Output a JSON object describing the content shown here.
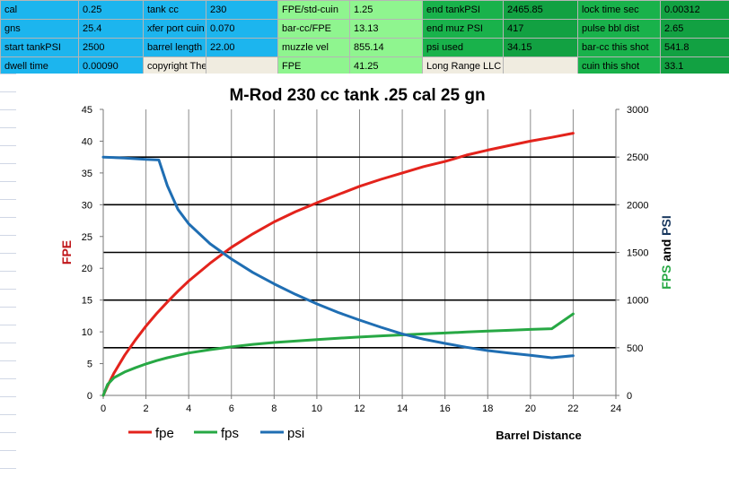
{
  "params": {
    "rows": [
      [
        {
          "label": "cal",
          "value": "0.25"
        },
        {
          "label": "tank cc",
          "value": "230"
        },
        {
          "label": "FPE/std-cuin",
          "value": "1.25"
        },
        {
          "label": "end tankPSI",
          "value": "2465.85"
        },
        {
          "label": "lock time sec",
          "value": "0.00312"
        }
      ],
      [
        {
          "label": "gns",
          "value": "25.4"
        },
        {
          "label": "xfer port cuin",
          "value": "0.070"
        },
        {
          "label": "bar-cc/FPE",
          "value": "13.13"
        },
        {
          "label": "end muz PSI",
          "value": "417"
        },
        {
          "label": "pulse bbl dist",
          "value": "2.65"
        }
      ],
      [
        {
          "label": "start tankPSI",
          "value": "2500"
        },
        {
          "label": "barrel length",
          "value": "22.00"
        },
        {
          "label": "muzzle vel",
          "value": "855.14"
        },
        {
          "label": "psi used",
          "value": "34.15"
        },
        {
          "label": "bar-cc this shot",
          "value": "541.8"
        }
      ],
      [
        {
          "label": "dwell time",
          "value": "0.00090"
        },
        {
          "label": "copyright The Airgun Lab LLC",
          "value": ""
        },
        {
          "label": "FPE",
          "value": "41.25"
        },
        {
          "label": "Long Range LLC Proprietary",
          "value": ""
        },
        {
          "label": "cuin this shot",
          "value": "33.1"
        }
      ]
    ]
  },
  "chart_data": {
    "type": "line",
    "title": "M-Rod 230 cc tank .25 cal 25 gn",
    "xlabel": "Barrel Distance",
    "ylabel_left": "FPE",
    "ylabel_right_parts": [
      "FPS",
      " and ",
      "PSI"
    ],
    "xlim": [
      0,
      24
    ],
    "xticks": [
      "0",
      "2",
      "4",
      "6",
      "8",
      "10",
      "12",
      "14",
      "16",
      "18",
      "20",
      "22",
      "24"
    ],
    "ylim_left": [
      0,
      45
    ],
    "yticks_left": [
      "0",
      "5",
      "10",
      "15",
      "20",
      "25",
      "30",
      "35",
      "40",
      "45"
    ],
    "ylim_right": [
      0,
      3000
    ],
    "yticks_right": [
      "0",
      "500",
      "1000",
      "1500",
      "2000",
      "2500",
      "3000"
    ],
    "colors": {
      "fpe": "#e3231c",
      "fps": "#27a844",
      "psi": "#1f6eb3",
      "label_left": "#c0171b",
      "label_fps": "#27a844",
      "label_psi": "#17365d"
    },
    "legend": [
      "fpe",
      "fps",
      "psi"
    ],
    "series": [
      {
        "name": "fpe",
        "axis": "left",
        "x": [
          0,
          0.2,
          0.5,
          1,
          1.5,
          2,
          2.5,
          3,
          3.5,
          4,
          5,
          6,
          7,
          8,
          9,
          10,
          11,
          12,
          13,
          14,
          15,
          16,
          17,
          18,
          19,
          20,
          21,
          22
        ],
        "y": [
          0,
          1.5,
          3.5,
          6.3,
          8.7,
          10.9,
          12.9,
          14.7,
          16.4,
          18,
          20.8,
          23.3,
          25.4,
          27.3,
          28.9,
          30.3,
          31.6,
          32.9,
          34,
          35,
          36,
          36.8,
          37.8,
          38.6,
          39.3,
          40,
          40.6,
          41.25
        ]
      },
      {
        "name": "fps",
        "axis": "right",
        "x": [
          0,
          0.2,
          0.5,
          1,
          1.5,
          2,
          2.5,
          3,
          3.5,
          4,
          5,
          6,
          7,
          8,
          9,
          10,
          11,
          12,
          13,
          14,
          15,
          16,
          17,
          18,
          19,
          20,
          21,
          22
        ],
        "y": [
          0,
          115,
          185,
          245,
          290,
          330,
          365,
          395,
          420,
          445,
          480,
          510,
          535,
          555,
          570,
          585,
          600,
          612,
          624,
          635,
          645,
          655,
          665,
          675,
          683,
          692,
          700,
          855
        ]
      },
      {
        "name": "psi",
        "axis": "right",
        "x": [
          0,
          1,
          2,
          2.6,
          3,
          3.5,
          4,
          5,
          6,
          7,
          8,
          9,
          10,
          11,
          12,
          13,
          14,
          15,
          16,
          17,
          18,
          19,
          20,
          21,
          22
        ],
        "y": [
          2500,
          2490,
          2475,
          2470,
          2200,
          1950,
          1800,
          1590,
          1430,
          1290,
          1170,
          1060,
          960,
          870,
          790,
          715,
          645,
          590,
          545,
          505,
          470,
          445,
          420,
          395,
          417
        ]
      }
    ]
  }
}
